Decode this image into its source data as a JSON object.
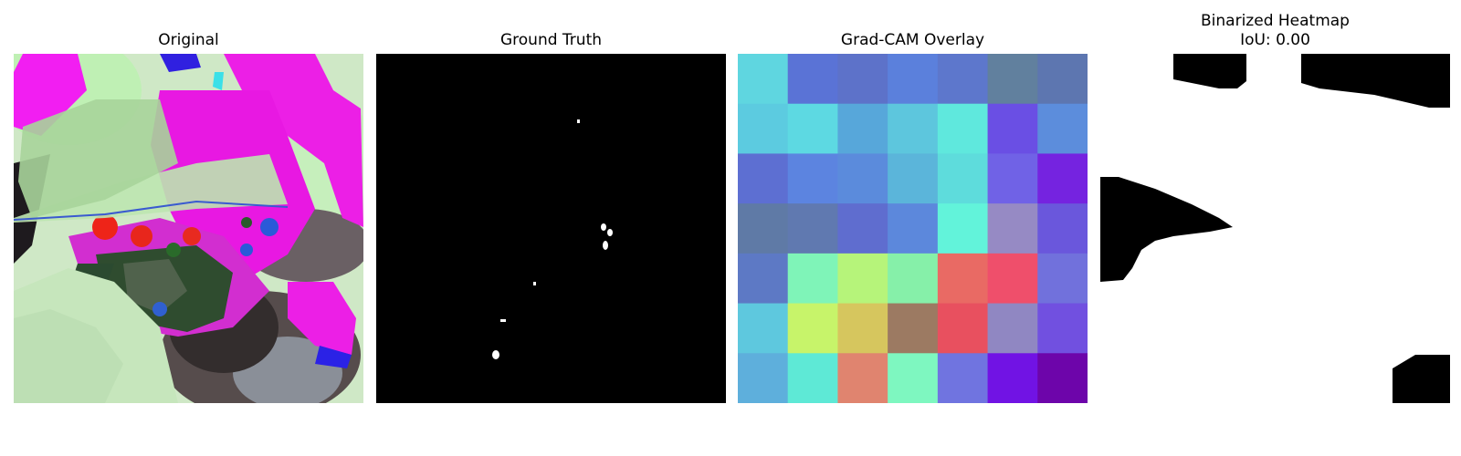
{
  "panels": [
    {
      "title": "Original"
    },
    {
      "title": "Ground Truth"
    },
    {
      "title": "Grad-CAM Overlay"
    },
    {
      "title": "Binarized Heatmap",
      "subtitle": "IoU: 0.00"
    }
  ],
  "gradcam": {
    "rows": 7,
    "cols": 7,
    "cells": [
      [
        "#5fd6e0",
        "#5a73d6",
        "#5d72c9",
        "#5b80dc",
        "#5d77cc",
        "#61809e",
        "#5d76b0"
      ],
      [
        "#5ccbe0",
        "#5dd9e2",
        "#57a7da",
        "#5dc6dd",
        "#5fe8dd",
        "#6a4fe4",
        "#5c8ddc"
      ],
      [
        "#5d6fd2",
        "#5c84e0",
        "#5b8bdc",
        "#5bb5da",
        "#5edcdc",
        "#7062e6",
        "#7523e0"
      ],
      [
        "#5f7aa6",
        "#6079b0",
        "#5f6dcf",
        "#5c88dc",
        "#62f3da",
        "#968ac4",
        "#6a57dc"
      ],
      [
        "#5d79c5",
        "#7ff4b8",
        "#b6f47a",
        "#86f0a9",
        "#e96a64",
        "#ef4f6b",
        "#7171dc"
      ],
      [
        "#5ec8de",
        "#c7f46a",
        "#d6c65e",
        "#9c7a62",
        "#e8505f",
        "#9087c2",
        "#7150e0"
      ],
      [
        "#5eafdc",
        "#5ee9d6",
        "#e0846f",
        "#7ef7c0",
        "#7074e0",
        "#7113e4",
        "#6d05aa"
      ]
    ]
  }
}
